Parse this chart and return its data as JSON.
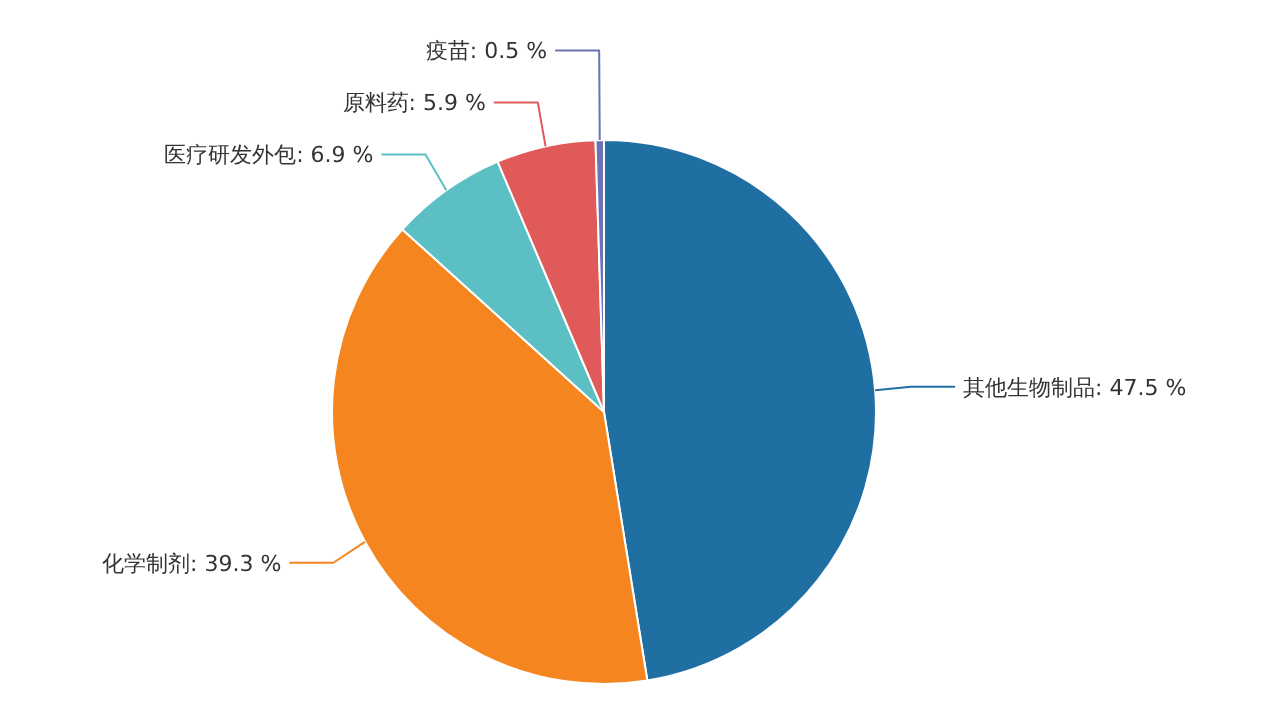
{
  "chart_data": {
    "type": "pie",
    "categories": [
      "其他生物制品",
      "化学制剂",
      "医疗研发外包",
      "原料药",
      "疫苗"
    ],
    "values": [
      47.5,
      39.3,
      6.9,
      5.9,
      0.5
    ],
    "colors": [
      "#1f6fa3",
      "#f5861f",
      "#5bbfc4",
      "#e05a5a",
      "#6a73b5"
    ],
    "value_labels": [
      "47.5 %",
      "39.3 %",
      "6.9 %",
      "5.9 %",
      "0.5 %"
    ],
    "legend": false
  }
}
